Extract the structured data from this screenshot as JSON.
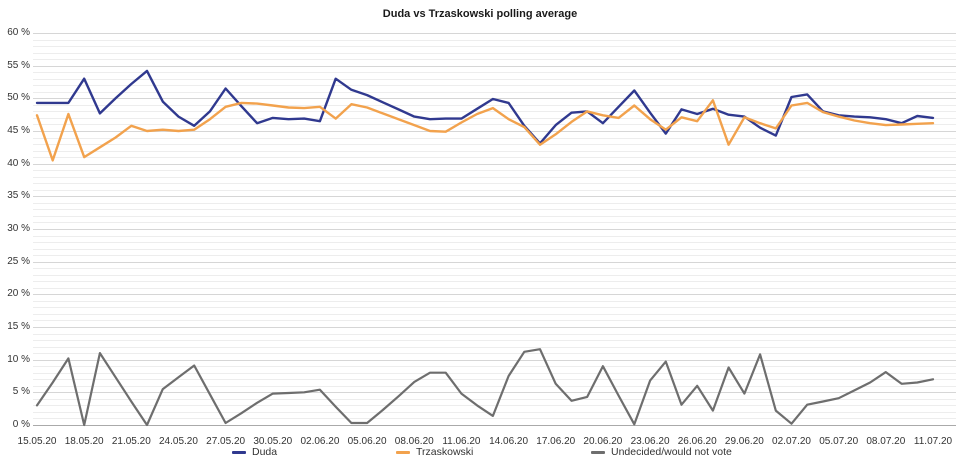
{
  "title": "Duda vs Trzaskowski polling average",
  "legend": {
    "items": [
      {
        "label": "Duda",
        "color": "#30398f"
      },
      {
        "label": "Trzaskowski",
        "color": "#f2a24d"
      },
      {
        "label": "Undecided/would not vote",
        "color": "#6e6e6e"
      }
    ]
  },
  "axes": {
    "y_tick_labels": [
      "60 %",
      "55 %",
      "50 %",
      "45 %",
      "40 %",
      "35 %",
      "30 %",
      "25 %",
      "20 %",
      "15 %",
      "10 %",
      "5 %",
      "0 %"
    ],
    "x_tick_labels": [
      "15.05.20",
      "18.05.20",
      "21.05.20",
      "24.05.20",
      "27.05.20",
      "30.05.20",
      "02.06.20",
      "05.06.20",
      "08.06.20",
      "11.06.20",
      "14.06.20",
      "17.06.20",
      "20.06.20",
      "23.06.20",
      "26.06.20",
      "29.06.20",
      "02.07.20",
      "05.07.20",
      "08.07.20",
      "11.07.20"
    ]
  },
  "colors": {
    "grid_minor": "#ededed",
    "grid_major": "#d6d6d6",
    "axis_line": "#aaaaaa",
    "text": "#333333"
  },
  "chart_data": {
    "type": "line",
    "title": "Duda vs Trzaskowski polling average",
    "xlabel": "",
    "ylabel": "",
    "ylim": [
      0,
      60
    ],
    "y_tick_step": 5,
    "grid": "minor gridlines every 1%, major every 5%, horizontal only",
    "legend_position": "bottom",
    "x_unit": "date, daily points from 15.05.20 to 11.07.20",
    "x_tick_labels": [
      "15.05.20",
      "18.05.20",
      "21.05.20",
      "24.05.20",
      "27.05.20",
      "30.05.20",
      "02.06.20",
      "05.06.20",
      "08.06.20",
      "11.06.20",
      "14.06.20",
      "17.06.20",
      "20.06.20",
      "23.06.20",
      "26.06.20",
      "29.06.20",
      "02.07.20",
      "05.07.20",
      "08.07.20",
      "11.07.20"
    ],
    "series": [
      {
        "name": "Duda",
        "color": "#30398f",
        "values": [
          49.3,
          49.3,
          49.3,
          53.0,
          47.7,
          50.0,
          52.2,
          54.2,
          49.5,
          47.2,
          45.8,
          48.0,
          51.5,
          48.8,
          46.2,
          47.0,
          46.8,
          46.9,
          46.5,
          53.0,
          51.3,
          50.5,
          49.4,
          48.3,
          47.2,
          46.8,
          46.9,
          46.9,
          48.4,
          49.9,
          49.3,
          45.8,
          43.1,
          45.9,
          47.8,
          48.0,
          46.2,
          48.7,
          51.2,
          47.8,
          44.6,
          48.3,
          47.6,
          48.4,
          47.5,
          47.2,
          45.5,
          44.3,
          50.2,
          50.6,
          48.0,
          47.4,
          47.2,
          47.1,
          46.8,
          46.2,
          47.3,
          47.0
        ]
      },
      {
        "name": "Trzaskowski",
        "color": "#f2a24d",
        "values": [
          47.4,
          40.5,
          47.6,
          41.0,
          42.5,
          44.0,
          45.8,
          45.0,
          45.2,
          45.0,
          45.2,
          46.8,
          48.7,
          49.3,
          49.2,
          48.9,
          48.6,
          48.5,
          48.7,
          46.9,
          49.1,
          48.6,
          47.7,
          46.8,
          45.9,
          45.0,
          44.9,
          46.3,
          47.6,
          48.5,
          46.8,
          45.6,
          42.9,
          44.5,
          46.4,
          48.0,
          47.4,
          47.0,
          48.9,
          46.8,
          45.2,
          47.1,
          46.5,
          49.7,
          42.9,
          47.1,
          46.2,
          45.4,
          48.9,
          49.3,
          47.9,
          47.2,
          46.6,
          46.2,
          45.9,
          46.0,
          46.1,
          46.2
        ]
      },
      {
        "name": "Undecided/would not vote",
        "color": "#6e6e6e",
        "values": [
          3.0,
          6.5,
          10.2,
          0.0,
          11.0,
          7.3,
          3.6,
          0.0,
          5.5,
          7.3,
          9.1,
          4.7,
          0.3,
          1.8,
          3.4,
          4.8,
          4.9,
          5.0,
          5.4,
          2.8,
          0.3,
          0.3,
          2.3,
          4.4,
          6.6,
          8.0,
          8.0,
          4.8,
          3.0,
          1.4,
          7.5,
          11.2,
          11.6,
          6.3,
          3.7,
          4.3,
          9.0,
          4.5,
          0.1,
          6.8,
          9.7,
          3.1,
          6.0,
          2.2,
          8.8,
          4.8,
          10.8,
          2.2,
          0.2,
          3.1,
          3.6,
          4.1,
          5.3,
          6.5,
          8.1,
          6.3,
          6.5,
          7.0
        ]
      }
    ]
  }
}
